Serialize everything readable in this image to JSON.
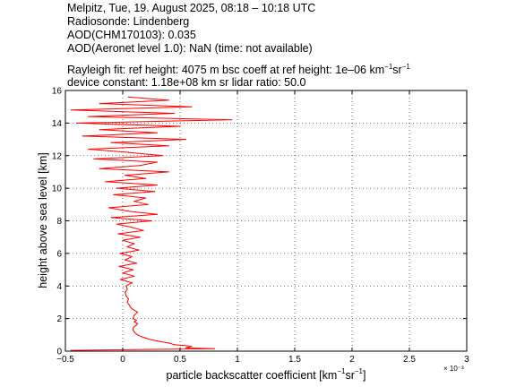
{
  "header": {
    "line1": "Melpitz, Tue, 19. August 2025, 08:18 – 10:18 UTC",
    "line2": "Radiosonde: Lindenberg",
    "line3": "AOD(CHM170103): 0.035",
    "line4": "AOD(Aeronet level 1.0): NaN   (time: not available)",
    "line5_a": "Rayleigh fit:     ref height: 4075 m     bsc coeff at ref height: 1e–06 km",
    "line5_sup1": "−1",
    "line5_b": "sr",
    "line5_sup2": "−1",
    "line6": "device constant: 1.18e+08 km sr     lidar ratio: 50.0"
  },
  "chart_data": {
    "type": "line",
    "xlabel_main": "particle backscatter coefficient [km",
    "xlabel_sup1": "−1",
    "xlabel_mid": "sr",
    "xlabel_sup2": "−1",
    "xlabel_end": "]",
    "ylabel": "height above sea level [km]",
    "x_multiplier": "× 10⁻³",
    "xlim": [
      -0.5,
      3
    ],
    "ylim": [
      0,
      16
    ],
    "xticks": [
      -0.5,
      0,
      0.5,
      1,
      1.5,
      2,
      2.5,
      3
    ],
    "xtick_labels": [
      "−0.5",
      "0",
      "0.5",
      "1",
      "1.5",
      "2",
      "2.5",
      "3"
    ],
    "yticks": [
      0,
      2,
      4,
      6,
      8,
      10,
      12,
      14,
      16
    ],
    "ytick_labels": [
      "0",
      "2",
      "4",
      "6",
      "8",
      "10",
      "12",
      "14",
      "16"
    ],
    "grid": true,
    "line_color": "#ff0000",
    "series": [
      {
        "y": [
          0.05,
          0.1,
          0.15,
          0.2,
          0.3,
          0.4,
          0.5,
          0.6,
          0.7,
          0.8,
          0.9,
          1.0,
          1.1,
          1.2,
          1.3,
          1.4,
          1.5,
          1.6,
          1.7,
          1.8,
          1.9,
          2.0,
          2.2,
          2.4,
          2.6,
          2.8,
          3.0,
          3.2,
          3.4,
          3.6,
          3.8,
          4.0,
          4.2,
          4.4,
          4.6,
          4.8,
          5.0,
          5.2,
          5.4,
          5.6,
          5.8,
          6.0,
          6.2,
          6.4,
          6.6,
          6.8,
          7.0,
          7.2,
          7.4,
          7.6,
          7.8,
          8.0,
          8.2,
          8.4,
          8.6,
          8.8,
          9.0,
          9.2,
          9.4,
          9.6,
          9.8,
          10.0,
          10.2,
          10.4,
          10.6,
          10.8,
          11.0,
          11.2,
          11.4,
          11.6,
          11.8,
          12.0,
          12.2,
          12.4,
          12.6,
          12.8,
          13.0,
          13.2,
          13.4,
          13.6,
          13.8,
          14.0,
          14.2,
          14.4,
          14.6,
          14.8,
          15.0,
          15.2,
          15.4,
          15.6
        ],
        "x": [
          -0.45,
          0.1,
          0.8,
          0.55,
          0.6,
          0.45,
          0.4,
          0.32,
          0.25,
          0.2,
          0.16,
          0.13,
          0.11,
          0.1,
          0.09,
          0.09,
          0.1,
          0.12,
          0.13,
          0.1,
          0.12,
          0.09,
          0.1,
          0.13,
          0.08,
          0.06,
          0.04,
          0.05,
          0.03,
          0.02,
          0.04,
          0.03,
          0.08,
          -0.02,
          0.1,
          0.0,
          0.09,
          -0.03,
          0.12,
          0.02,
          0.08,
          -0.02,
          0.14,
          0.04,
          0.1,
          0.0,
          0.15,
          -0.04,
          0.18,
          0.08,
          -0.05,
          0.25,
          -0.1,
          0.3,
          0.04,
          -0.12,
          0.22,
          0.1,
          0.2,
          -0.08,
          0.28,
          -0.05,
          0.3,
          -0.15,
          0.2,
          0.02,
          0.4,
          -0.2,
          0.15,
          0.3,
          -0.25,
          0.35,
          0.05,
          -0.3,
          0.4,
          -0.1,
          0.55,
          -0.35,
          0.3,
          -0.2,
          0.5,
          -0.4,
          0.95,
          -0.3,
          0.45,
          -0.45,
          0.6,
          -0.2,
          0.4,
          0.05
        ]
      }
    ]
  }
}
